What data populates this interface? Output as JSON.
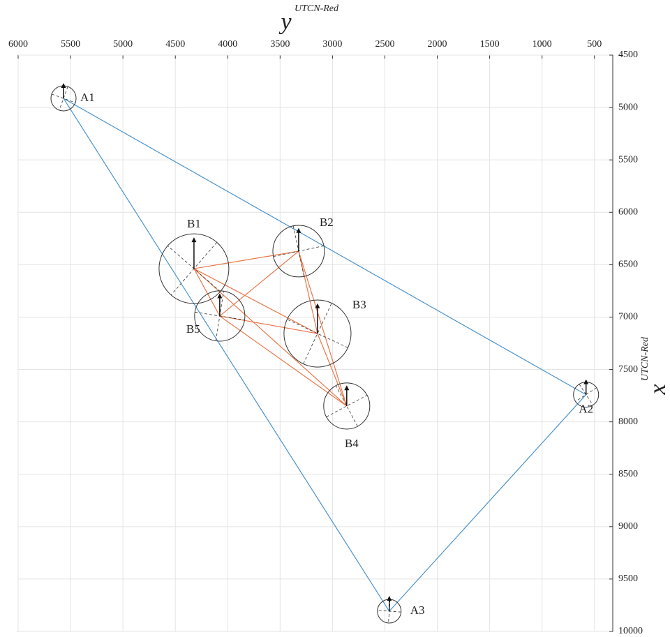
{
  "chart_data": {
    "type": "network",
    "xlabel": "y",
    "xlabel_sup": "UTCN-Red",
    "ylabel": "x",
    "ylabel_sup": "UTCN-Red",
    "xlim": [
      6000,
      325
    ],
    "ylim": [
      4500,
      10000
    ],
    "xticks": [
      6000,
      5500,
      5000,
      4500,
      4000,
      3500,
      3000,
      2500,
      2000,
      1500,
      1000,
      500
    ],
    "yticks": [
      4500,
      5000,
      5500,
      6000,
      6500,
      7000,
      7500,
      8000,
      8500,
      9000,
      9500,
      10000
    ],
    "grid": true,
    "labels": [
      "A1",
      "A2",
      "A3",
      "B1",
      "B2",
      "B3",
      "B4",
      "B5"
    ],
    "x": [
      5567,
      580,
      2458,
      4322,
      3323,
      3143,
      2864,
      4076
    ],
    "values": [
      4913,
      7740,
      9807,
      6538,
      6371,
      7157,
      7849,
      6990
    ],
    "radius": [
      120,
      120,
      113,
      333,
      246,
      320,
      220,
      240
    ],
    "networks": [
      {
        "color": "#4a93cc",
        "edges": [
          [
            0,
            1
          ],
          [
            1,
            2
          ],
          [
            2,
            0
          ]
        ]
      },
      {
        "color": "#e8784a",
        "edges": [
          [
            3,
            4
          ],
          [
            3,
            5
          ],
          [
            3,
            6
          ],
          [
            3,
            7
          ],
          [
            4,
            5
          ],
          [
            4,
            6
          ],
          [
            4,
            7
          ],
          [
            5,
            6
          ],
          [
            5,
            7
          ],
          [
            7,
            6
          ]
        ]
      }
    ]
  }
}
